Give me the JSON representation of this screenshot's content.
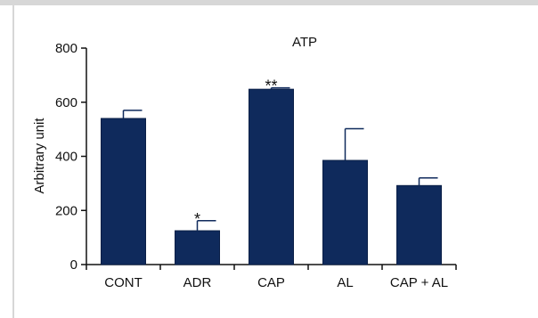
{
  "chart_data": {
    "type": "bar",
    "title": "ATP",
    "xlabel": "",
    "ylabel": "Arbitrary unit",
    "ylim": [
      0,
      800
    ],
    "yticks": [
      0,
      200,
      400,
      600,
      800
    ],
    "categories": [
      "CONT",
      "ADR",
      "CAP",
      "AL",
      "CAP + AL"
    ],
    "values": [
      540,
      125,
      648,
      385,
      292
    ],
    "errors": [
      30,
      37,
      5,
      117,
      28
    ],
    "significance": [
      "",
      "*",
      "**",
      "",
      ""
    ],
    "grid": false,
    "bar_color": "#0f2a5c",
    "axis_color": "#111111"
  }
}
